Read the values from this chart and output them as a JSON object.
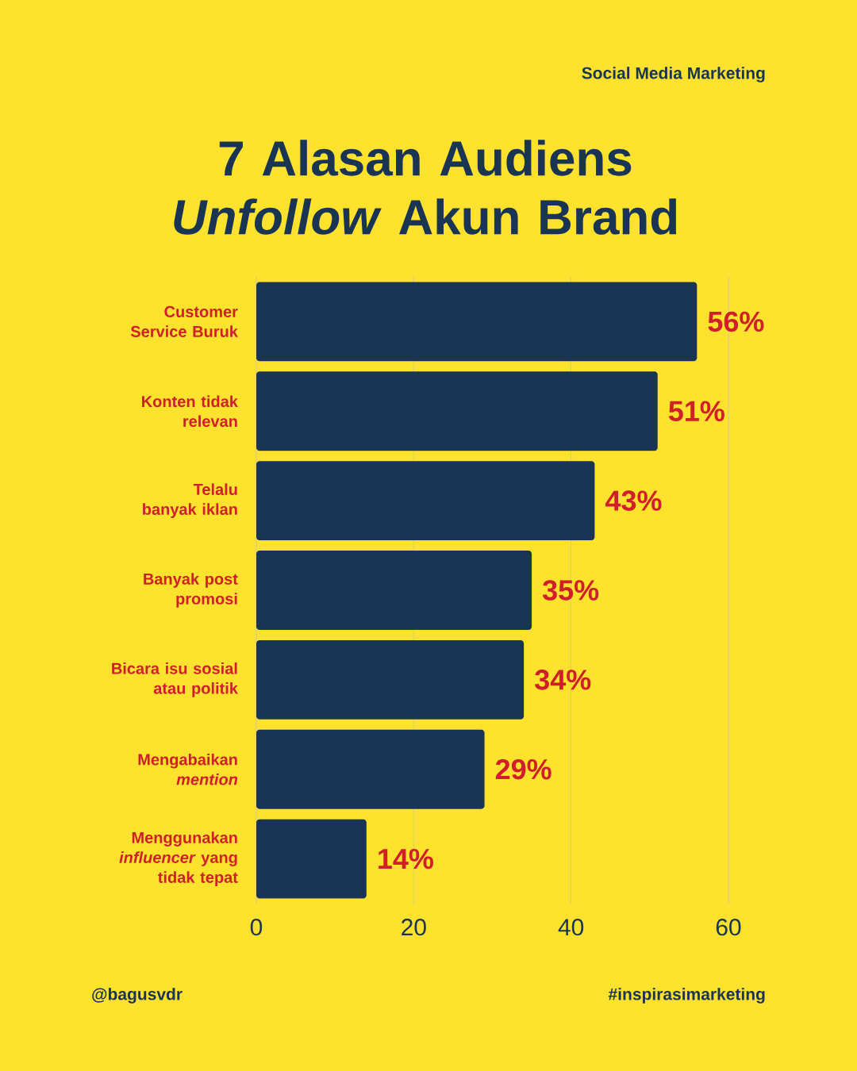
{
  "chart_data": {
    "type": "bar",
    "orientation": "horizontal",
    "title": "7 Alasan Audiens *Unfollow* Akun Brand",
    "subtitle": "Social Media Marketing",
    "categories": [
      "Customer Service Buruk",
      "Konten tidak relevan",
      "Telalu banyak iklan",
      "Banyak post promosi",
      "Bicara isu sosial atau politik",
      "Mengabaikan *mention*",
      "Menggunakan *influencer* yang tidak tepat"
    ],
    "values": [
      56,
      51,
      43,
      35,
      34,
      29,
      14
    ],
    "value_labels": [
      "56%",
      "51%",
      "43%",
      "35%",
      "34%",
      "29%",
      "14%"
    ],
    "color": "#1a3553",
    "xlim": [
      0,
      60
    ],
    "xticks": [
      0,
      20,
      40,
      60
    ],
    "grid": "x",
    "annotations": [
      "@bagusvdr",
      "#inspirasimarketing"
    ]
  }
}
